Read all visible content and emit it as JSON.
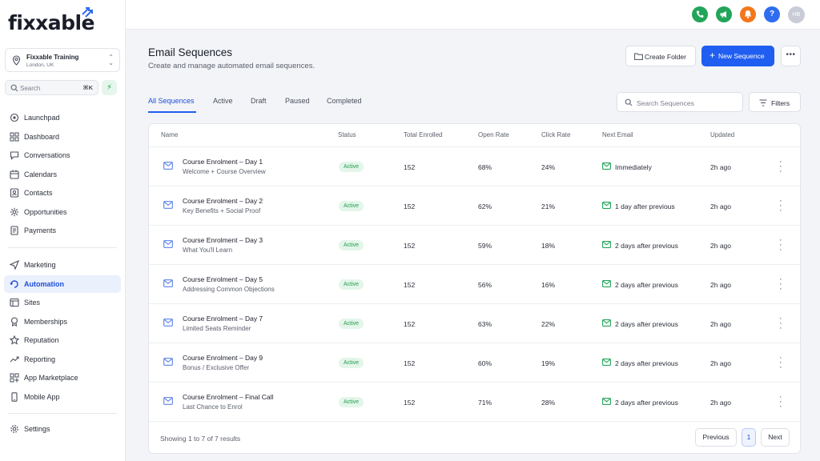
{
  "app": {
    "logo_text": "fixxable"
  },
  "account": {
    "name": "Fixxable Training",
    "location": "London, UK"
  },
  "sidebar_search": {
    "placeholder": "Search",
    "shortcut": "⌘K"
  },
  "nav": [
    {
      "label": "Launchpad",
      "icon": "launchpad-icon"
    },
    {
      "label": "Dashboard",
      "icon": "dashboard-grid-icon"
    },
    {
      "label": "Conversations",
      "icon": "chat-bubble-icon"
    },
    {
      "label": "Calendars",
      "icon": "calendar-icon"
    },
    {
      "label": "Contacts",
      "icon": "contacts-icon"
    },
    {
      "label": "Opportunities",
      "icon": "opportunities-icon"
    },
    {
      "label": "Payments",
      "icon": "payments-icon"
    },
    {
      "label": "Marketing",
      "icon": "send-icon"
    },
    {
      "label": "Automation",
      "icon": "automation-icon",
      "active": true
    },
    {
      "label": "Sites",
      "icon": "sites-icon"
    },
    {
      "label": "Memberships",
      "icon": "memberships-icon"
    },
    {
      "label": "Reputation",
      "icon": "star-icon"
    },
    {
      "label": "Reporting",
      "icon": "reporting-icon"
    },
    {
      "label": "App Marketplace",
      "icon": "marketplace-icon"
    },
    {
      "label": "Mobile App",
      "icon": "mobile-icon"
    },
    {
      "label": "Settings",
      "icon": "gear-icon"
    }
  ],
  "topbar": {
    "avatar_initials": "HB",
    "help_glyph": "?"
  },
  "colors": {
    "primary": "#1f5ef0",
    "phone": "#22a55a",
    "megaphone": "#22a55a",
    "bell": "#f5761a",
    "help": "#2f6cf0",
    "active_badge_bg": "#e3f6e9",
    "active_badge_text": "#249b52"
  },
  "header": {
    "title": "Email Sequences",
    "subtitle": "Create and manage automated email sequences.",
    "create_folder": "Create Folder",
    "new_sequence": "New Sequence"
  },
  "tabs": [
    "All Sequences",
    "Active",
    "Draft",
    "Paused",
    "Completed"
  ],
  "search": {
    "placeholder": "Search Sequences"
  },
  "filters_label": "Filters",
  "table": {
    "columns": [
      "Name",
      "Status",
      "Total Enrolled",
      "Open Rate",
      "Click Rate",
      "Next Email",
      "Updated"
    ],
    "rows": [
      {
        "title": "Course Enrolment – Day 1",
        "subtitle": "Welcome + Course Overview",
        "status": "Active",
        "enrolled": "152",
        "open": "68%",
        "click": "24%",
        "next": "Immediately",
        "updated": "2h ago"
      },
      {
        "title": "Course Enrolment – Day 2",
        "subtitle": "Key Benefits + Social Proof",
        "status": "Active",
        "enrolled": "152",
        "open": "62%",
        "click": "21%",
        "next": "1 day after previous",
        "updated": "2h ago"
      },
      {
        "title": "Course Enrolment – Day 3",
        "subtitle": "What You'll Learn",
        "status": "Active",
        "enrolled": "152",
        "open": "59%",
        "click": "18%",
        "next": "2 days after previous",
        "updated": "2h ago"
      },
      {
        "title": "Course Enrolment – Day 5",
        "subtitle": "Addressing Common Objections",
        "status": "Active",
        "enrolled": "152",
        "open": "56%",
        "click": "16%",
        "next": "2 days after previous",
        "updated": "2h ago"
      },
      {
        "title": "Course Enrolment – Day 7",
        "subtitle": "Limited Seats Reminder",
        "status": "Active",
        "enrolled": "152",
        "open": "63%",
        "click": "22%",
        "next": "2 days after previous",
        "updated": "2h ago"
      },
      {
        "title": "Course Enrolment – Day 9",
        "subtitle": "Bonus / Exclusive Offer",
        "status": "Active",
        "enrolled": "152",
        "open": "60%",
        "click": "19%",
        "next": "2 days after previous",
        "updated": "2h ago"
      },
      {
        "title": "Course Enrolment – Final Call",
        "subtitle": "Last Chance to Enrol",
        "status": "Active",
        "enrolled": "152",
        "open": "71%",
        "click": "28%",
        "next": "2 days after previous",
        "updated": "2h ago"
      }
    ]
  },
  "pagination": {
    "summary": "Showing 1 to 7 of 7 results",
    "previous": "Previous",
    "current_page": "1",
    "next": "Next"
  }
}
